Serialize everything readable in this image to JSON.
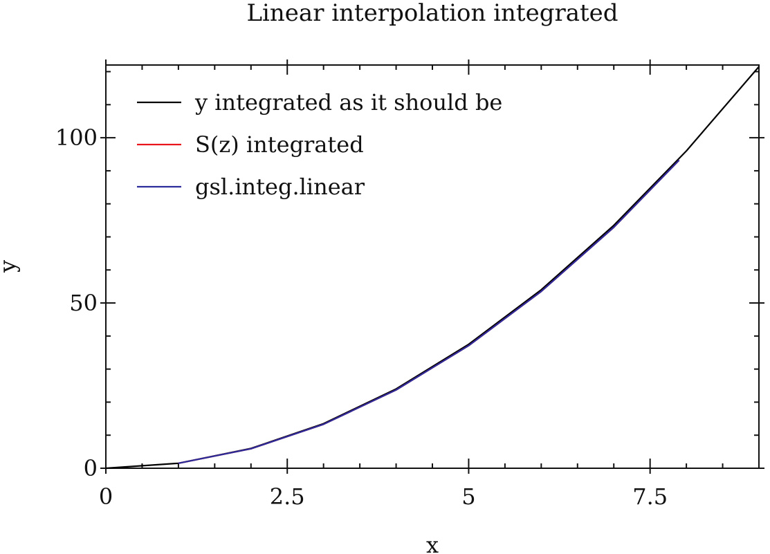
{
  "chart_data": {
    "type": "line",
    "title": "Linear interpolation integrated",
    "xlabel": "x",
    "ylabel": "y",
    "xlim": [
      0,
      9
    ],
    "ylim": [
      0,
      122
    ],
    "x_ticks": [
      0,
      2.5,
      5,
      7.5
    ],
    "x_tick_labels": [
      "0",
      "2.5",
      "5",
      "7.5"
    ],
    "y_ticks": [
      0,
      50,
      100
    ],
    "y_tick_labels": [
      "0",
      "50",
      "100"
    ],
    "x_minor_step": 0.5,
    "y_minor_step": 10,
    "legend_position": "top-left",
    "series": [
      {
        "name": "y integrated as it should be",
        "color": "#000000",
        "x": [
          0,
          1,
          2,
          3,
          4,
          5,
          6,
          7,
          8,
          9
        ],
        "y": [
          0,
          1.5,
          6,
          13.5,
          24,
          37.5,
          54,
          73.5,
          96,
          121.5
        ]
      },
      {
        "name": "S(z) integrated",
        "color": "#e8151b",
        "x": [
          1,
          2,
          3,
          4,
          5,
          6,
          7,
          7.9
        ],
        "y": [
          1.5,
          5.9,
          13.3,
          23.7,
          37.1,
          53.5,
          72.9,
          93.2
        ]
      },
      {
        "name": "gsl.integ.linear",
        "color": "#2b2b9b",
        "x": [
          1,
          2,
          3,
          4,
          5,
          6,
          7,
          7.9
        ],
        "y": [
          1.5,
          5.9,
          13.3,
          23.7,
          37.1,
          53.5,
          72.9,
          93.2
        ]
      }
    ]
  }
}
